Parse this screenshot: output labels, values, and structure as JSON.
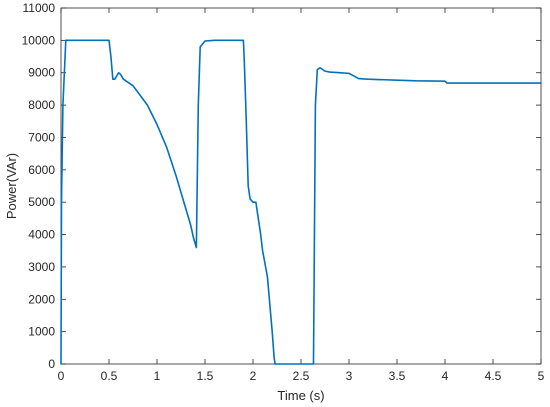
{
  "chart_data": {
    "type": "line",
    "title": "",
    "xlabel": "Time (s)",
    "ylabel": "Power(VAr)",
    "xlim": [
      0,
      5
    ],
    "ylim": [
      0,
      11000
    ],
    "xticks": [
      0,
      0.5,
      1,
      1.5,
      2,
      2.5,
      3,
      3.5,
      4,
      4.5,
      5
    ],
    "xtick_labels": [
      "0",
      "0.5",
      "1",
      "1.5",
      "2",
      "2.5",
      "3",
      "3.5",
      "4",
      "4.5",
      "5"
    ],
    "yticks": [
      0,
      1000,
      2000,
      3000,
      4000,
      5000,
      6000,
      7000,
      8000,
      9000,
      10000,
      11000
    ],
    "ytick_labels": [
      "0",
      "1000",
      "2000",
      "3000",
      "4000",
      "5000",
      "6000",
      "7000",
      "8000",
      "9000",
      "10000",
      "11000"
    ],
    "grid": false,
    "legend": "none",
    "line_color": "#0072BD",
    "series": [
      {
        "x": [
          0,
          0.005,
          0.02,
          0.05,
          0.1,
          0.5,
          0.52,
          0.54,
          0.56,
          0.6,
          0.62,
          0.65,
          0.7,
          0.75,
          0.8,
          0.9,
          1.0,
          1.1,
          1.2,
          1.3,
          1.35,
          1.38,
          1.41,
          1.43,
          1.45,
          1.5,
          1.6,
          1.7,
          1.8,
          1.9,
          1.91,
          1.93,
          1.95,
          1.97,
          2.0,
          2.03,
          2.05,
          2.08,
          2.1,
          2.15,
          2.2,
          2.22,
          2.23,
          2.24,
          2.5,
          2.63,
          2.64,
          2.65,
          2.67,
          2.7,
          2.75,
          2.8,
          2.9,
          3.0,
          3.05,
          3.1,
          3.2,
          3.3,
          3.5,
          3.7,
          4.0,
          4.02,
          4.5,
          5.0
        ],
        "y": [
          0,
          5000,
          8000,
          10000,
          10000,
          10000,
          9500,
          8800,
          8800,
          9000,
          8950,
          8800,
          8700,
          8600,
          8400,
          8000,
          7400,
          6700,
          5800,
          4800,
          4300,
          3900,
          3600,
          8000,
          9800,
          9980,
          10000,
          10000,
          10000,
          10000,
          9300,
          7500,
          5500,
          5100,
          5000,
          5000,
          4600,
          4000,
          3500,
          2700,
          1000,
          200,
          0,
          0,
          0,
          0,
          4000,
          8000,
          9100,
          9150,
          9050,
          9020,
          9000,
          8980,
          8900,
          8820,
          8800,
          8790,
          8770,
          8750,
          8740,
          8680,
          8680,
          8680
        ]
      }
    ]
  }
}
